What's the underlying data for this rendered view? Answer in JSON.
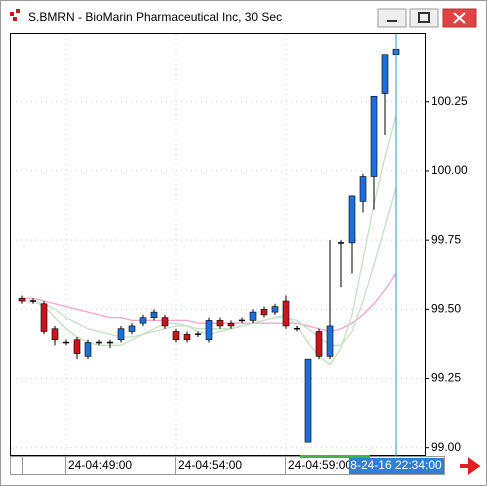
{
  "window_title": "S.BMRN - BioMarin Pharmaceutical Inc, 30 Sec",
  "chart_data": {
    "type": "candlestick",
    "open": [
      99.54,
      99.53,
      99.52,
      99.43,
      99.38,
      99.39,
      99.33,
      99.38,
      99.38,
      99.39,
      99.42,
      99.45,
      99.47,
      99.47,
      99.42,
      99.41,
      99.41,
      99.39,
      99.46,
      99.45,
      99.46,
      99.46,
      99.5,
      99.49,
      99.53,
      99.43,
      99.02,
      99.42,
      99.33,
      99.74,
      99.74,
      99.89,
      99.98,
      100.28,
      100.42
    ],
    "high": [
      99.55,
      99.54,
      99.53,
      99.44,
      99.39,
      99.4,
      99.39,
      99.39,
      99.39,
      99.44,
      99.45,
      99.48,
      99.5,
      99.48,
      99.43,
      99.42,
      99.42,
      99.47,
      99.47,
      99.46,
      99.47,
      99.5,
      99.51,
      99.52,
      99.55,
      99.44,
      99.32,
      99.43,
      99.75,
      99.75,
      99.91,
      99.99,
      100.27,
      100.42,
      100.45
    ],
    "low": [
      99.52,
      99.52,
      99.41,
      99.37,
      99.37,
      99.32,
      99.32,
      99.37,
      99.36,
      99.38,
      99.41,
      99.44,
      99.46,
      99.43,
      99.38,
      99.38,
      99.4,
      99.38,
      99.43,
      99.43,
      99.45,
      99.45,
      99.47,
      99.48,
      99.43,
      99.42,
      99.02,
      99.32,
      99.32,
      99.58,
      99.63,
      99.85,
      99.86,
      100.13,
      100.42
    ],
    "close": [
      99.53,
      99.53,
      99.42,
      99.39,
      99.38,
      99.34,
      99.38,
      99.38,
      99.38,
      99.43,
      99.44,
      99.47,
      99.49,
      99.44,
      99.39,
      99.39,
      99.41,
      99.46,
      99.44,
      99.44,
      99.46,
      99.49,
      99.48,
      99.51,
      99.44,
      99.43,
      99.32,
      99.33,
      99.44,
      99.74,
      99.91,
      99.98,
      100.27,
      100.42,
      100.44
    ],
    "up_color": "#1c6fd8",
    "down_color": "#c8161d",
    "flat_color": "#000000",
    "lines": [
      {
        "color": "#f2a6c8",
        "values": [
          99.54,
          99.54,
          99.53,
          99.52,
          99.51,
          99.5,
          99.49,
          99.48,
          99.47,
          99.47,
          99.46,
          99.46,
          99.46,
          99.46,
          99.46,
          99.46,
          99.45,
          99.45,
          99.45,
          99.45,
          99.45,
          99.45,
          99.45,
          99.45,
          99.45,
          99.45,
          99.44,
          99.43,
          99.42,
          99.43,
          99.45,
          99.48,
          99.52,
          99.57,
          99.63
        ]
      },
      {
        "color": "#c6dfc6",
        "values": [
          99.53,
          99.53,
          99.51,
          99.47,
          99.43,
          99.4,
          99.38,
          99.37,
          99.37,
          99.37,
          99.39,
          99.41,
          99.43,
          99.45,
          99.45,
          99.44,
          99.42,
          99.41,
          99.42,
          99.43,
          99.44,
          99.45,
          99.46,
          99.47,
          99.48,
          99.44,
          99.38,
          99.33,
          99.3,
          99.36,
          99.48,
          99.68,
          99.88,
          100.05,
          100.2
        ]
      },
      {
        "color": "#c6dfc6",
        "values": [
          99.53,
          99.53,
          99.52,
          99.5,
          99.47,
          99.45,
          99.43,
          99.42,
          99.41,
          99.4,
          99.4,
          99.41,
          99.42,
          99.43,
          99.44,
          99.44,
          99.43,
          99.43,
          99.43,
          99.43,
          99.44,
          99.45,
          99.46,
          99.47,
          99.47,
          99.46,
          99.43,
          99.4,
          99.37,
          99.37,
          99.42,
          99.53,
          99.66,
          99.8,
          99.94
        ]
      }
    ],
    "ylim": [
      98.97,
      100.495
    ],
    "yticks": [
      {
        "value": 99,
        "label": "99.00"
      },
      {
        "value": 99.25,
        "label": "99.25"
      },
      {
        "value": 99.5,
        "label": "99.50"
      },
      {
        "value": 99.75,
        "label": "99.75"
      },
      {
        "value": 100,
        "label": "100.00"
      },
      {
        "value": 100.25,
        "label": "100.25"
      }
    ],
    "xticks": [
      {
        "value": 4,
        "label": "24-04:49:00"
      },
      {
        "value": 14,
        "label": "24-04:54:00"
      },
      {
        "value": 24,
        "label": "24-04:59:00"
      }
    ],
    "cursor": {
      "value": 34,
      "label": "8-24-16 22:34:00",
      "color": "#2a9bbf"
    },
    "grid": true
  }
}
